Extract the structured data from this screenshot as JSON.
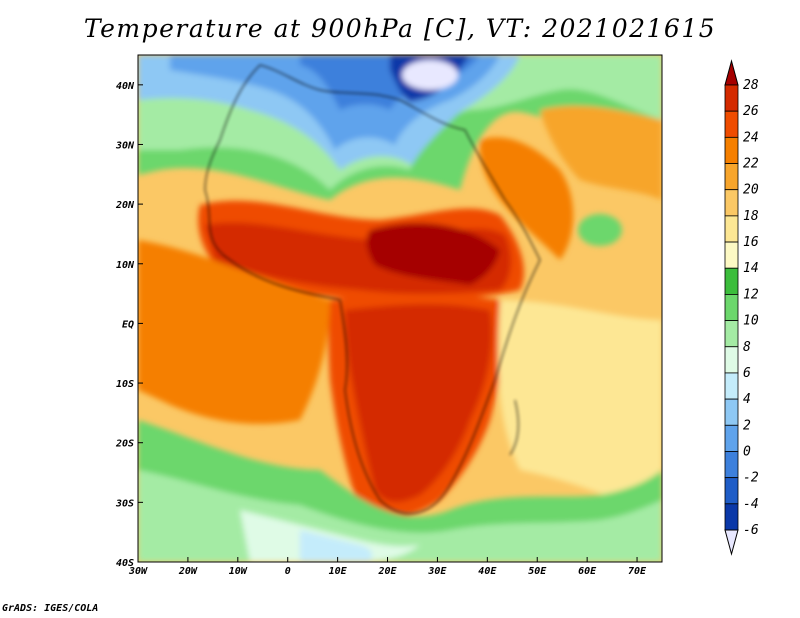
{
  "title": "Temperature at 900hPa [C], VT: 2021021615",
  "credit": "GrADS: IGES/COLA",
  "map": {
    "variable": "Temperature",
    "level": "900hPa",
    "units": "C",
    "valid_time": "2021021615",
    "lon_range": [
      -30,
      75
    ],
    "lat_range": [
      -40,
      45
    ],
    "lon_ticks": [
      {
        "value": -30,
        "label": "30W"
      },
      {
        "value": -20,
        "label": "20W"
      },
      {
        "value": -10,
        "label": "10W"
      },
      {
        "value": 0,
        "label": "0"
      },
      {
        "value": 10,
        "label": "10E"
      },
      {
        "value": 20,
        "label": "20E"
      },
      {
        "value": 30,
        "label": "30E"
      },
      {
        "value": 40,
        "label": "40E"
      },
      {
        "value": 50,
        "label": "50E"
      },
      {
        "value": 60,
        "label": "60E"
      },
      {
        "value": 70,
        "label": "70E"
      }
    ],
    "lat_ticks": [
      {
        "value": 40,
        "label": "40N"
      },
      {
        "value": 30,
        "label": "30N"
      },
      {
        "value": 20,
        "label": "20N"
      },
      {
        "value": 10,
        "label": "10N"
      },
      {
        "value": 0,
        "label": "EQ"
      },
      {
        "value": -10,
        "label": "10S"
      },
      {
        "value": -20,
        "label": "20S"
      },
      {
        "value": -30,
        "label": "30S"
      },
      {
        "value": -40,
        "label": "40S"
      }
    ]
  },
  "colorbar": {
    "levels": [
      28,
      26,
      24,
      22,
      20,
      18,
      16,
      14,
      12,
      10,
      8,
      6,
      4,
      2,
      0,
      -2,
      -4,
      -6
    ],
    "colors": [
      "#a50000",
      "#d42a00",
      "#ef4c00",
      "#f57f00",
      "#f7a52c",
      "#fbc865",
      "#fde794",
      "#fdf9c4",
      "#3cbd3c",
      "#6cd76c",
      "#a4eba4",
      "#dffbe6",
      "#c4ecfb",
      "#8ec8f4",
      "#5fa3ec",
      "#3d80dc",
      "#1f5dc7",
      "#0a38a8",
      "#0a1a7a",
      "#e8e8ff"
    ]
  }
}
